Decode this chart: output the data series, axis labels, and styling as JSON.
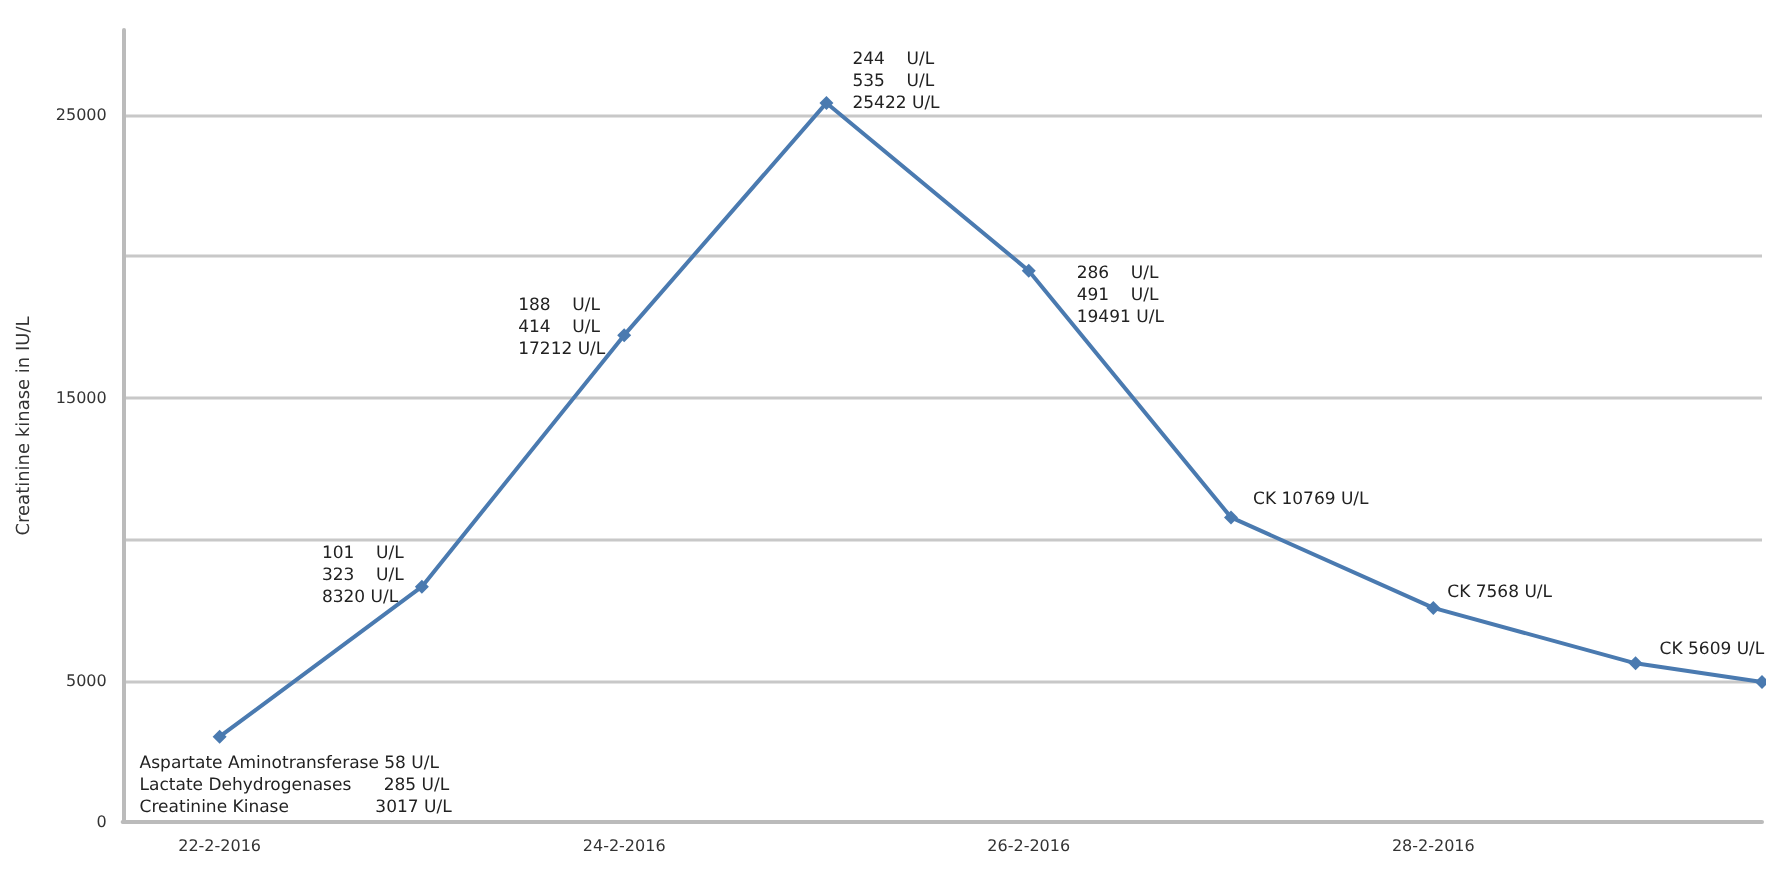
{
  "chart_data": {
    "type": "line",
    "ylabel": "Creatinine kinase in IU/L",
    "x": [
      "2016-02-22",
      "2016-02-23",
      "2016-02-24",
      "2016-02-25",
      "2016-02-26",
      "2016-02-27",
      "2016-02-28",
      "2016-02-29",
      "2016-02-29T15:00"
    ],
    "xlim": [
      "2016-02-21T12:30",
      "2016-02-29T15:00"
    ],
    "xticks": [
      {
        "value": "2016-02-22",
        "label": "22-2-2016"
      },
      {
        "value": "2016-02-24",
        "label": "24-2-2016"
      },
      {
        "value": "2016-02-26",
        "label": "26-2-2016"
      },
      {
        "value": "2016-02-28",
        "label": "28-2-2016"
      }
    ],
    "series": [
      {
        "color": "#4a7ab0",
        "values": [
          3017,
          8320,
          17212,
          25422,
          19491,
          10769,
          7568,
          5609,
          4950
        ]
      }
    ],
    "ylim": [
      0,
      28000
    ],
    "yticks": [
      0,
      5000,
      {
        "value": 10000,
        "label": null
      },
      15000,
      {
        "value": 20000,
        "label": null
      },
      25000
    ],
    "grid": "y",
    "marker": "diamond",
    "line_style": "solid",
    "annotations": [
      {
        "text": "Aspartate Aminotransferase 58 U/L\nLactate Dehydrogenases      285 U/L\nCreatinine Kinase                3017 U/L",
        "x": "2016-02-22",
        "y": 3017
      },
      {
        "text": "101    U/L\n323    U/L\n8320 U/L",
        "x": "2016-02-23",
        "y": 8320
      },
      {
        "text": "188    U/L\n414    U/L\n17212 U/L",
        "x": "2016-02-24",
        "y": 17212
      },
      {
        "text": "244    U/L\n535    U/L\n25422 U/L",
        "x": "2016-02-25",
        "y": 25422
      },
      {
        "text": "286    U/L\n491    U/L\n19491 U/L",
        "x": "2016-02-26",
        "y": 19491
      },
      {
        "text": "CK 10769 U/L",
        "x": "2016-02-27",
        "y": 10769
      },
      {
        "text": "CK 7568 U/L",
        "x": "2016-02-28",
        "y": 7568
      },
      {
        "text": "CK 5609 U/L",
        "x": "2016-02-29",
        "y": 5609
      }
    ]
  }
}
